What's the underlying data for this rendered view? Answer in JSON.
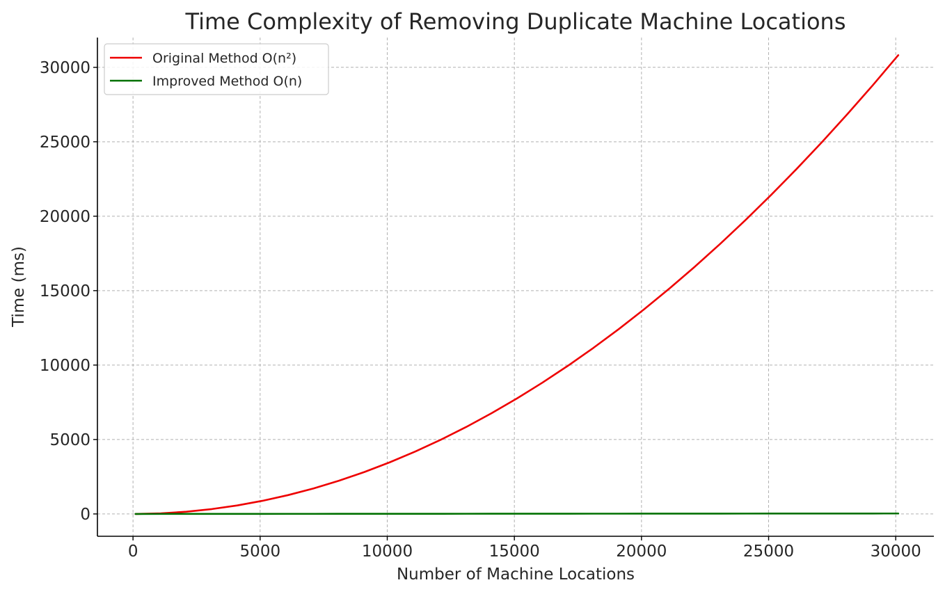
{
  "chart_data": {
    "type": "line",
    "title": "Time Complexity of Removing Duplicate Machine Locations",
    "xlabel": "Number of Machine Locations",
    "ylabel": "Time (ms)",
    "xlim": [
      -1400,
      31500
    ],
    "ylim": [
      -1500,
      32000
    ],
    "xticks": [
      0,
      5000,
      10000,
      15000,
      20000,
      25000,
      30000
    ],
    "yticks": [
      0,
      5000,
      10000,
      15000,
      20000,
      25000,
      30000
    ],
    "grid": true,
    "legend_position": "top-left",
    "x": [
      100,
      1100,
      2100,
      3100,
      4100,
      5100,
      6100,
      7100,
      8100,
      9100,
      10100,
      11100,
      12100,
      13100,
      14100,
      15100,
      16100,
      17100,
      18100,
      19100,
      20100,
      21100,
      22100,
      23100,
      24100,
      25100,
      26100,
      27100,
      28100,
      29100,
      30100
    ],
    "series": [
      {
        "name": "Original Method O(n²)",
        "color": "#ee0000",
        "values": [
          0.34,
          41.1,
          149.9,
          326.8,
          571.7,
          884.6,
          1265.6,
          1714.6,
          2231.7,
          2816.8,
          3469.9,
          4191.1,
          4980.2,
          5837.4,
          6762.6,
          7755.8,
          8817.1,
          9946.3,
          11143.6,
          12409.0,
          13742.3,
          15143.7,
          16613.0,
          18150.4,
          19755.8,
          21429.3,
          23170.7,
          24980.2,
          26857.7,
          28803.2,
          30816.7
        ]
      },
      {
        "name": "Improved Method O(n)",
        "color": "#007000",
        "values": [
          0.1,
          1.1,
          2.1,
          3.1,
          4.1,
          5.1,
          6.1,
          7.1,
          8.1,
          9.1,
          10.1,
          11.1,
          12.1,
          13.1,
          14.1,
          15.1,
          16.1,
          17.1,
          18.1,
          19.1,
          20.1,
          21.1,
          22.1,
          23.1,
          24.1,
          25.1,
          26.1,
          27.1,
          28.1,
          29.1,
          30.1
        ]
      }
    ]
  }
}
